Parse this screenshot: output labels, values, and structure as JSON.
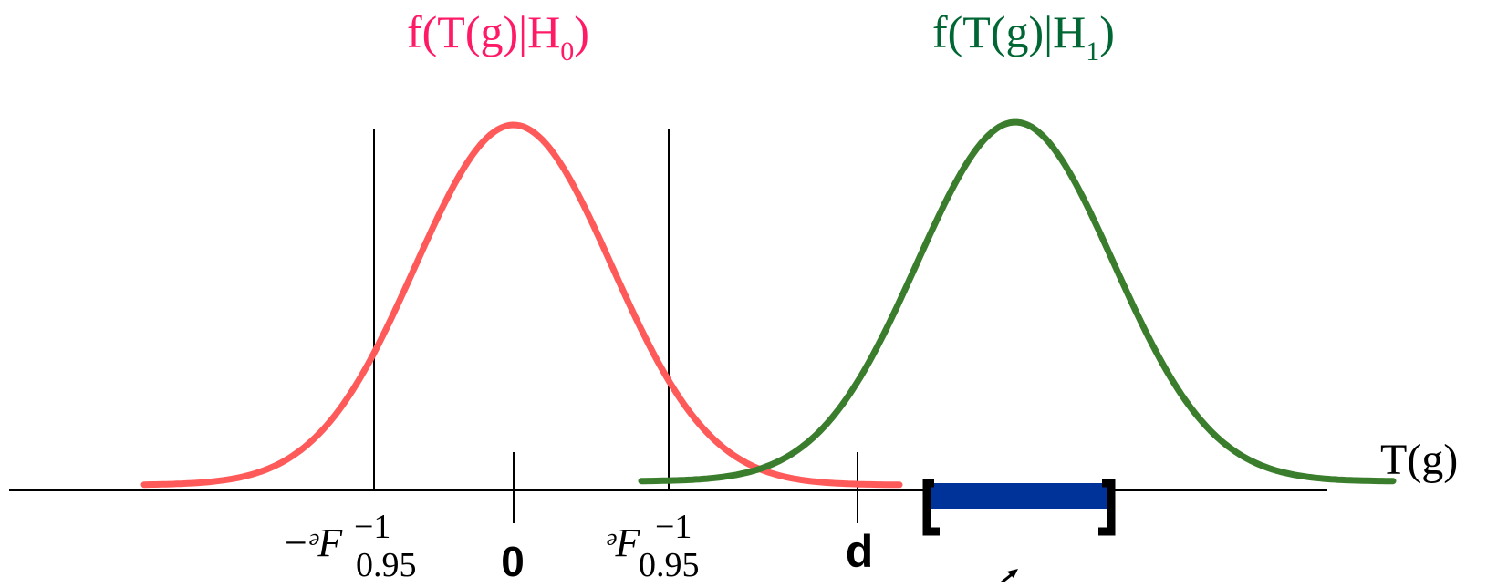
{
  "title_h0": {
    "text": "f(T(g)|H",
    "sub": "0",
    "close": ")",
    "color": "#ff1a66"
  },
  "title_h1": {
    "text": "f(T(g)|H",
    "sub": "1",
    "close": ")",
    "color": "#006633"
  },
  "axis_label": "T(g)",
  "tick_labels": {
    "neg_threshold": {
      "sign": "−",
      "symbol": "ᵊF",
      "sup": "−1",
      "sub": "0.95"
    },
    "zero": "0",
    "pos_threshold": {
      "symbol": "ᵊF",
      "sup": "−1",
      "sub": "0.95"
    },
    "d": "d"
  },
  "colors": {
    "null_curve": "#ff5a5a",
    "alt_curve": "#3a7d2c",
    "interval_bar": "#003399",
    "axis": "#000000"
  },
  "icons": {
    "arrow": "arrow-up-right-icon",
    "bracket_left": "left-bracket-icon",
    "bracket_right": "right-bracket-icon"
  }
}
